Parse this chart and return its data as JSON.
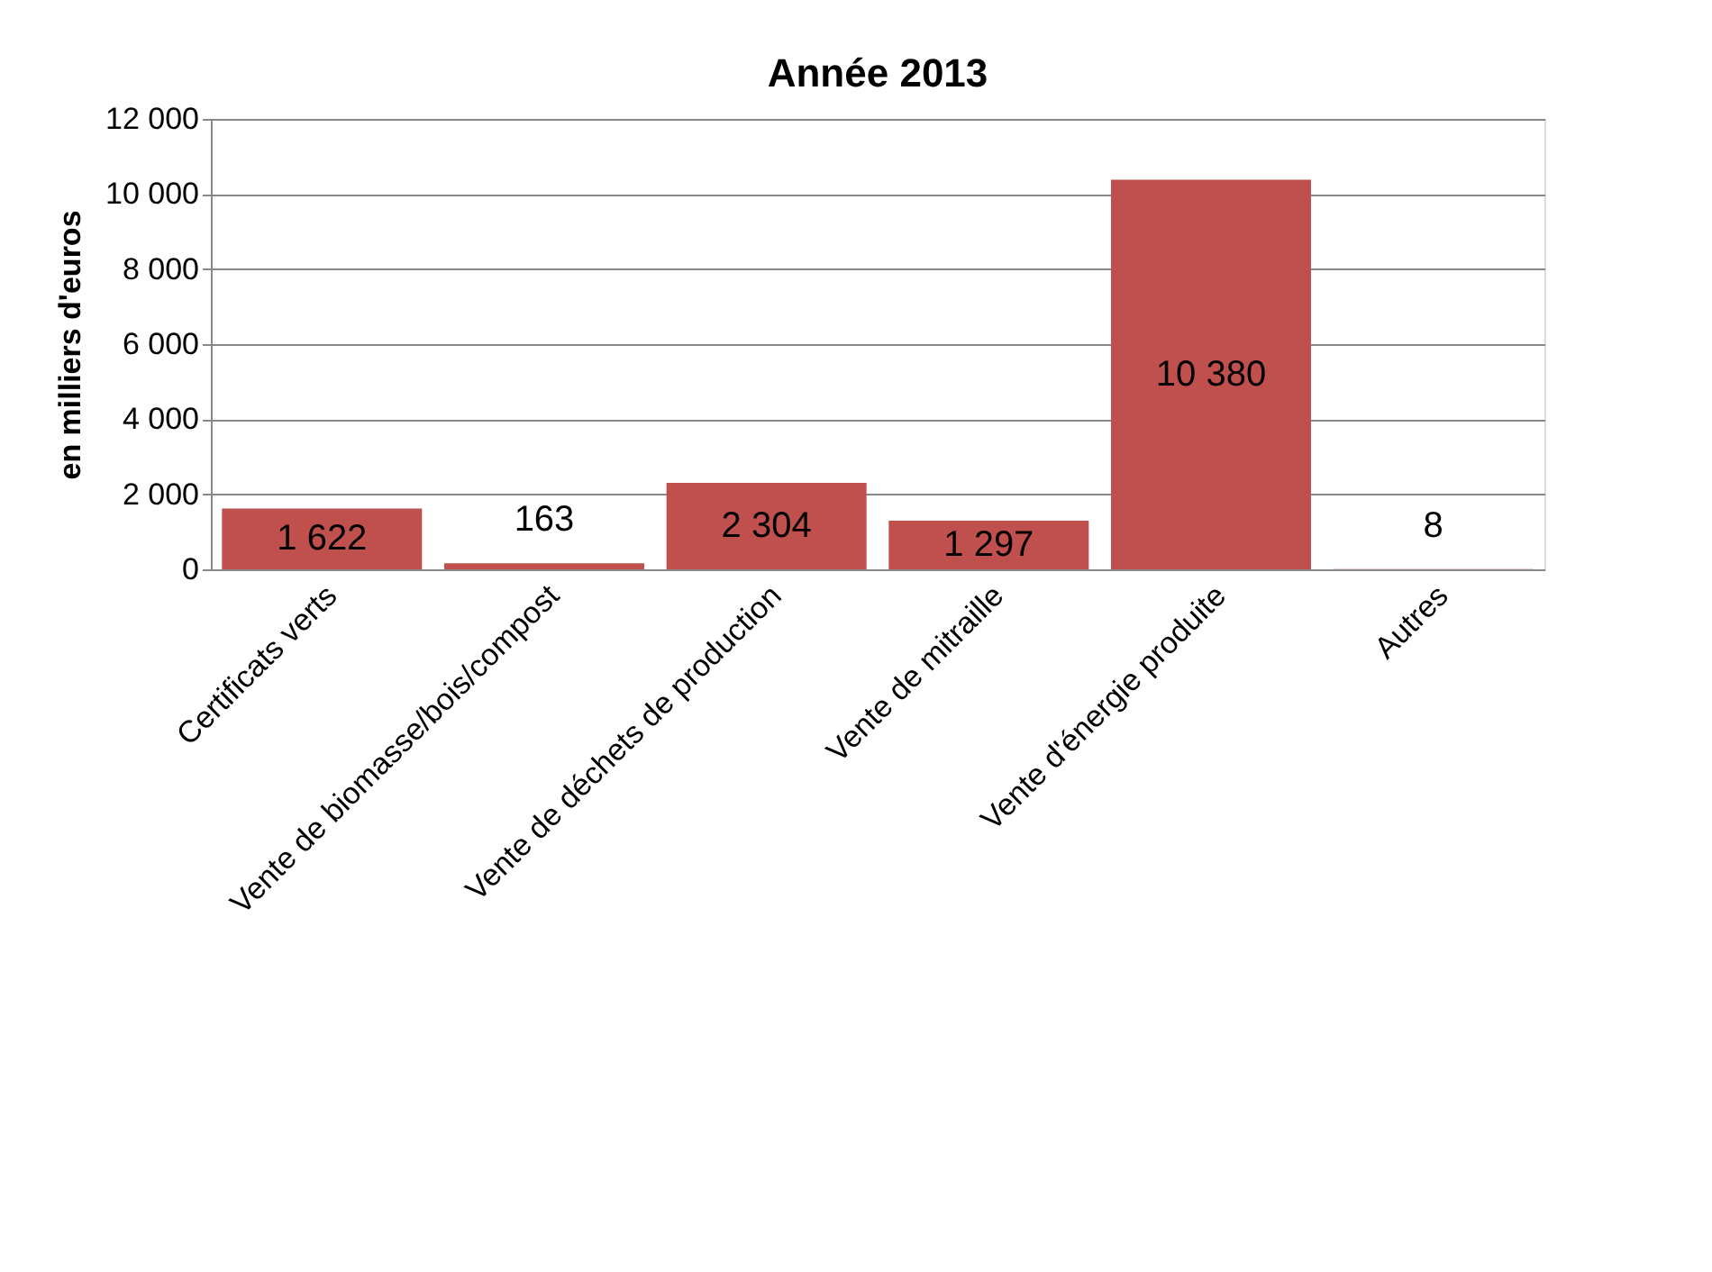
{
  "chart_data": {
    "type": "bar",
    "title": "Année 2013",
    "ylabel": "en milliers d'euros",
    "categories": [
      "Certificats verts",
      "Vente de biomasse/bois/compost",
      "Vente de déchets de production",
      "Vente de mitraille",
      "Vente d'énergie produite",
      "Autres"
    ],
    "values": [
      1622,
      163,
      2304,
      1297,
      10380,
      8
    ],
    "value_labels": [
      "1 622",
      "163",
      "2 304",
      "1 297",
      "10 380",
      "8"
    ],
    "color": "#c0504d",
    "ylim": [
      0,
      12000
    ],
    "yticks": [
      {
        "value": 0,
        "label": "0"
      },
      {
        "value": 2000,
        "label": "2 000"
      },
      {
        "value": 4000,
        "label": "4 000"
      },
      {
        "value": 6000,
        "label": "6 000"
      },
      {
        "value": 8000,
        "label": "8 000"
      },
      {
        "value": 10000,
        "label": "10 000"
      },
      {
        "value": 12000,
        "label": "12 000"
      }
    ],
    "grid": "y"
  }
}
